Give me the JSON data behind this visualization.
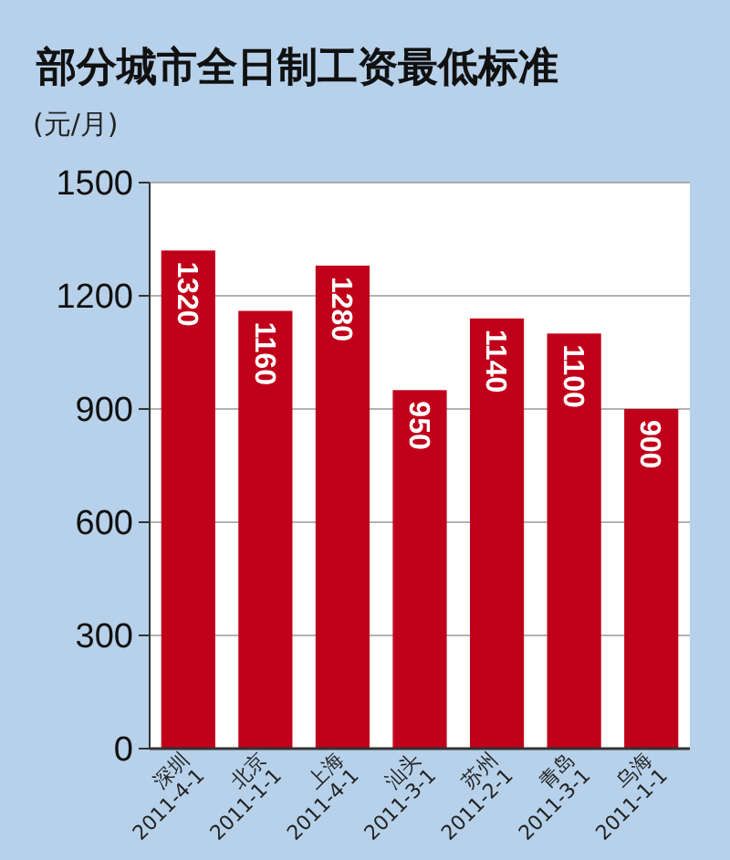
{
  "chart_data": {
    "type": "bar",
    "title": "部分城市全日制工资最低标准",
    "ylabel": "(元/月)",
    "categories": [
      "深圳\n2011-4-1",
      "北京\n2011-1-1",
      "上海\n2011-4-1",
      "汕头\n2011-3-1",
      "苏州\n2011-2-1",
      "青岛\n2011-3-1",
      "乌海\n2011-1-1"
    ],
    "values": [
      1320,
      1160,
      1280,
      950,
      1140,
      1100,
      900
    ],
    "color": "#c0001a",
    "ylim": [
      0,
      1500
    ],
    "yticks": [
      0,
      300,
      600,
      900,
      1200,
      1500
    ],
    "grid": "y",
    "data_labels": true
  }
}
